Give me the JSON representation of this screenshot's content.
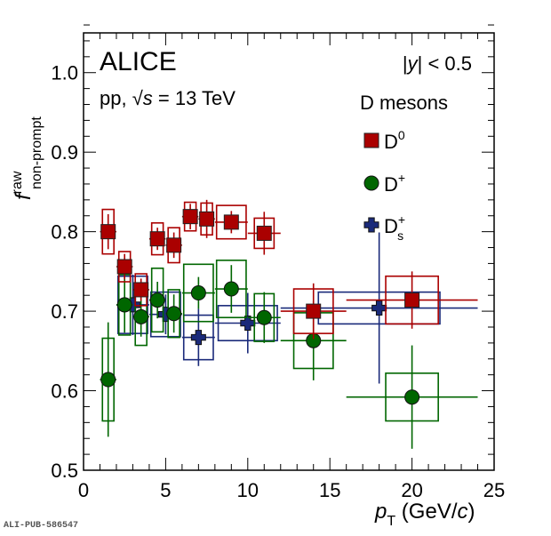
{
  "chart_data": {
    "type": "scatter",
    "title": "",
    "experiment_label": "ALICE",
    "system_label": {
      "prefix": "pp, ",
      "sqrt": "√",
      "var": "s",
      "suffix": " = 13 TeV"
    },
    "rapidity_label": {
      "open": "|",
      "var": "y",
      "close": "| < 0.5"
    },
    "legend_title": "D mesons",
    "legend_placement": "top-right",
    "xlabel": {
      "var": "p",
      "sub": "T",
      "unit_open": " (GeV/",
      "unit_var": "c",
      "unit_close": ")"
    },
    "ylabel": {
      "var": "f",
      "sup": "raw",
      "sub": "non-prompt"
    },
    "xlim": [
      0,
      25
    ],
    "ylim": [
      0.5,
      1.05
    ],
    "x_ticks": [
      0,
      5,
      10,
      15,
      20,
      25
    ],
    "x_tick_labels": [
      "0",
      "5",
      "10",
      "15",
      "20",
      "25"
    ],
    "y_ticks": [
      0.5,
      0.6,
      0.7,
      0.8,
      0.9,
      1.0
    ],
    "y_tick_labels": [
      "0.5",
      "0.6",
      "0.7",
      "0.8",
      "0.9",
      "1.0"
    ],
    "grid": false,
    "series": [
      {
        "name": "D0",
        "label_main": "D",
        "label_sup": "0",
        "label_sub": "",
        "marker": "square",
        "color": "#aa0000",
        "points": [
          {
            "x": 1.5,
            "xerr": 0.5,
            "y": 0.8,
            "stat": 0.022,
            "syst": 0.028,
            "syst_w": 0.35
          },
          {
            "x": 2.5,
            "xerr": 0.5,
            "y": 0.756,
            "stat": 0.016,
            "syst": 0.019,
            "syst_w": 0.35
          },
          {
            "x": 3.5,
            "xerr": 0.5,
            "y": 0.727,
            "stat": 0.014,
            "syst": 0.02,
            "syst_w": 0.35
          },
          {
            "x": 4.5,
            "xerr": 0.5,
            "y": 0.791,
            "stat": 0.014,
            "syst": 0.02,
            "syst_w": 0.35
          },
          {
            "x": 5.5,
            "xerr": 0.5,
            "y": 0.783,
            "stat": 0.016,
            "syst": 0.022,
            "syst_w": 0.35
          },
          {
            "x": 6.5,
            "xerr": 0.5,
            "y": 0.819,
            "stat": 0.016,
            "syst": 0.018,
            "syst_w": 0.35
          },
          {
            "x": 7.5,
            "xerr": 0.5,
            "y": 0.816,
            "stat": 0.024,
            "syst": 0.02,
            "syst_w": 0.35
          },
          {
            "x": 9.0,
            "xerr": 1.0,
            "y": 0.812,
            "stat": 0.014,
            "syst": 0.021,
            "syst_w": 0.9
          },
          {
            "x": 11.0,
            "xerr": 1.0,
            "y": 0.798,
            "stat": 0.027,
            "syst": 0.019,
            "syst_w": 0.6
          },
          {
            "x": 14.0,
            "xerr": 2.0,
            "y": 0.7,
            "stat": 0.035,
            "syst": 0.028,
            "syst_w": 1.2
          },
          {
            "x": 20.0,
            "xerr": 4.0,
            "y": 0.714,
            "stat": 0.036,
            "syst": 0.03,
            "syst_w": 1.6
          }
        ]
      },
      {
        "name": "D+",
        "label_main": "D",
        "label_sup": "+",
        "label_sub": "",
        "marker": "circle",
        "color": "#006600",
        "points": [
          {
            "x": 1.5,
            "xerr": 0.5,
            "y": 0.614,
            "stat": 0.072,
            "syst": 0.052,
            "syst_w": 0.35
          },
          {
            "x": 2.5,
            "xerr": 0.5,
            "y": 0.708,
            "stat": 0.035,
            "syst": 0.038,
            "syst_w": 0.35
          },
          {
            "x": 3.5,
            "xerr": 0.5,
            "y": 0.693,
            "stat": 0.025,
            "syst": 0.036,
            "syst_w": 0.35
          },
          {
            "x": 4.5,
            "xerr": 0.5,
            "y": 0.714,
            "stat": 0.023,
            "syst": 0.04,
            "syst_w": 0.35
          },
          {
            "x": 5.5,
            "xerr": 0.5,
            "y": 0.697,
            "stat": 0.024,
            "syst": 0.03,
            "syst_w": 0.35
          },
          {
            "x": 7.0,
            "xerr": 1.0,
            "y": 0.723,
            "stat": 0.02,
            "syst": 0.036,
            "syst_w": 0.9
          },
          {
            "x": 9.0,
            "xerr": 1.0,
            "y": 0.728,
            "stat": 0.03,
            "syst": 0.036,
            "syst_w": 0.9
          },
          {
            "x": 11.0,
            "xerr": 1.0,
            "y": 0.692,
            "stat": 0.032,
            "syst": 0.03,
            "syst_w": 0.6
          },
          {
            "x": 14.0,
            "xerr": 2.0,
            "y": 0.663,
            "stat": 0.05,
            "syst": 0.035,
            "syst_w": 1.2
          },
          {
            "x": 20.0,
            "xerr": 4.0,
            "y": 0.592,
            "stat": 0.065,
            "syst": 0.03,
            "syst_w": 1.6
          }
        ]
      },
      {
        "name": "Ds+",
        "label_main": "D",
        "label_sup": "+",
        "label_sub": "s",
        "marker": "cross",
        "color": "#1a2a7a",
        "points": [
          {
            "x": 3.0,
            "xerr": 1.0,
            "y": 0.708,
            "stat": 0.038,
            "syst": 0.036,
            "syst_w": 0.9
          },
          {
            "x": 5.0,
            "xerr": 1.0,
            "y": 0.696,
            "stat": 0.025,
            "syst": 0.028,
            "syst_w": 0.9
          },
          {
            "x": 7.0,
            "xerr": 1.0,
            "y": 0.667,
            "stat": 0.036,
            "syst": 0.028,
            "syst_w": 0.9
          },
          {
            "x": 10.0,
            "xerr": 2.0,
            "y": 0.685,
            "stat": 0.038,
            "syst": 0.022,
            "syst_w": 1.8
          },
          {
            "x": 18.0,
            "xerr": 6.0,
            "y": 0.704,
            "stat": 0.095,
            "syst": 0.02,
            "syst_w": 3.7
          }
        ]
      }
    ]
  },
  "footer_tag": "ALI-PUB-586547"
}
